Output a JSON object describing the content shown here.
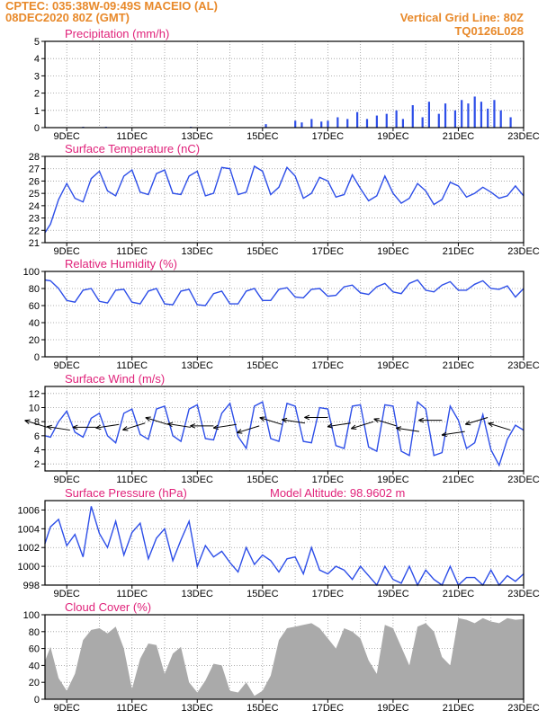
{
  "header": {
    "line1": "CPTEC:   035:38W-09:49S   MACEIO (AL)",
    "line2": "08DEC2020 80Z (GMT)",
    "right1": "Vertical Grid Line: 80Z",
    "right2": "TQ0126L028"
  },
  "x_ticks": [
    "9DEC",
    "11DEC",
    "13DEC",
    "15DEC",
    "17DEC",
    "19DEC",
    "21DEC",
    "23DEC"
  ],
  "colors": {
    "line": "#2d4ee8",
    "cloud": "#aaaaaa",
    "title": "#e0227a",
    "header": "#e8892a"
  },
  "chart_data": [
    {
      "type": "bar",
      "title": "Precipitation (mm/h)",
      "ylim": [
        0,
        5
      ],
      "yticks": [
        0,
        1,
        2,
        3,
        4,
        5
      ],
      "xlim": [
        8.333,
        23.0
      ],
      "x": [
        9.5,
        10.2,
        12.8,
        15.1,
        16.0,
        16.2,
        16.5,
        16.8,
        17.0,
        17.3,
        17.6,
        17.9,
        18.2,
        18.5,
        18.8,
        19.1,
        19.3,
        19.6,
        19.9,
        20.1,
        20.4,
        20.6,
        20.9,
        21.1,
        21.3,
        21.5,
        21.7,
        21.9,
        22.1,
        22.3,
        22.6
      ],
      "values": [
        0.05,
        0.05,
        0.05,
        0.2,
        0.4,
        0.3,
        0.5,
        0.35,
        0.4,
        0.6,
        0.5,
        0.9,
        0.5,
        0.7,
        0.8,
        1.0,
        0.5,
        1.3,
        0.6,
        1.5,
        0.8,
        1.4,
        1.0,
        1.6,
        1.4,
        1.8,
        1.5,
        1.1,
        1.6,
        1.0,
        0.6
      ]
    },
    {
      "type": "line",
      "title": "Surface Temperature (nC)",
      "ylim": [
        21,
        28
      ],
      "yticks": [
        21,
        22,
        23,
        24,
        25,
        26,
        27,
        28
      ],
      "xlim": [
        8.333,
        23.0
      ],
      "x": [
        8.33,
        8.5,
        8.75,
        9.0,
        9.25,
        9.5,
        9.75,
        10.0,
        10.25,
        10.5,
        10.75,
        11.0,
        11.25,
        11.5,
        11.75,
        12.0,
        12.25,
        12.5,
        12.75,
        13.0,
        13.25,
        13.5,
        13.75,
        14.0,
        14.25,
        14.5,
        14.75,
        15.0,
        15.25,
        15.5,
        15.75,
        16.0,
        16.25,
        16.5,
        16.75,
        17.0,
        17.25,
        17.5,
        17.75,
        18.0,
        18.25,
        18.5,
        18.75,
        19.0,
        19.25,
        19.5,
        19.75,
        20.0,
        20.25,
        20.5,
        20.75,
        21.0,
        21.25,
        21.5,
        21.75,
        22.0,
        22.25,
        22.5,
        22.75,
        23.0
      ],
      "values": [
        21.8,
        22.5,
        24.5,
        25.8,
        24.6,
        24.3,
        26.2,
        26.8,
        25.2,
        24.8,
        26.4,
        26.9,
        25.1,
        24.9,
        26.6,
        26.9,
        25.0,
        24.9,
        26.4,
        26.8,
        24.8,
        25.0,
        27.1,
        27.0,
        24.9,
        25.1,
        27.2,
        26.8,
        24.9,
        25.5,
        27.1,
        26.4,
        24.6,
        25.0,
        26.3,
        26.0,
        24.7,
        24.9,
        26.5,
        25.4,
        24.4,
        24.8,
        26.4,
        25.0,
        24.2,
        24.6,
        25.8,
        25.2,
        24.1,
        24.5,
        25.9,
        25.6,
        24.7,
        25.0,
        25.5,
        25.1,
        24.6,
        24.8,
        25.6,
        24.8
      ]
    },
    {
      "type": "line",
      "title": "Relative Humidity (%)",
      "ylim": [
        0,
        100
      ],
      "yticks": [
        0,
        20,
        40,
        60,
        80,
        100
      ],
      "xlim": [
        8.333,
        23.0
      ],
      "x": [
        8.33,
        8.5,
        8.75,
        9.0,
        9.25,
        9.5,
        9.75,
        10.0,
        10.25,
        10.5,
        10.75,
        11.0,
        11.25,
        11.5,
        11.75,
        12.0,
        12.25,
        12.5,
        12.75,
        13.0,
        13.25,
        13.5,
        13.75,
        14.0,
        14.25,
        14.5,
        14.75,
        15.0,
        15.25,
        15.5,
        15.75,
        16.0,
        16.25,
        16.5,
        16.75,
        17.0,
        17.25,
        17.5,
        17.75,
        18.0,
        18.25,
        18.5,
        18.75,
        19.0,
        19.25,
        19.5,
        19.75,
        20.0,
        20.25,
        20.5,
        20.75,
        21.0,
        21.25,
        21.5,
        21.75,
        22.0,
        22.25,
        22.5,
        22.75,
        23.0
      ],
      "values": [
        90,
        89,
        80,
        66,
        64,
        78,
        80,
        65,
        63,
        78,
        79,
        64,
        62,
        77,
        80,
        62,
        61,
        77,
        79,
        61,
        60,
        74,
        77,
        62,
        62,
        77,
        80,
        66,
        66,
        79,
        81,
        70,
        69,
        79,
        80,
        71,
        72,
        82,
        84,
        75,
        73,
        82,
        86,
        76,
        74,
        86,
        90,
        78,
        76,
        84,
        88,
        78,
        78,
        85,
        89,
        80,
        79,
        83,
        70,
        80
      ]
    },
    {
      "type": "line",
      "title": "Surface Wind (m/s)",
      "ylim": [
        1,
        13
      ],
      "yticks": [
        2,
        4,
        6,
        8,
        10,
        12
      ],
      "xlim": [
        8.333,
        23.0
      ],
      "x": [
        8.33,
        8.5,
        8.75,
        9.0,
        9.25,
        9.5,
        9.75,
        10.0,
        10.25,
        10.5,
        10.75,
        11.0,
        11.25,
        11.5,
        11.75,
        12.0,
        12.25,
        12.5,
        12.75,
        13.0,
        13.25,
        13.5,
        13.75,
        14.0,
        14.25,
        14.5,
        14.75,
        15.0,
        15.25,
        15.5,
        15.75,
        16.0,
        16.25,
        16.5,
        16.75,
        17.0,
        17.25,
        17.5,
        17.75,
        18.0,
        18.25,
        18.5,
        18.75,
        19.0,
        19.25,
        19.5,
        19.75,
        20.0,
        20.25,
        20.5,
        20.75,
        21.0,
        21.25,
        21.5,
        21.75,
        22.0,
        22.25,
        22.5,
        22.75,
        23.0
      ],
      "values": [
        6,
        5.8,
        8,
        9.5,
        6.5,
        5.8,
        8.5,
        9.2,
        6,
        5,
        9.2,
        9.8,
        6.2,
        5.5,
        9.8,
        10.2,
        6,
        5.2,
        9.8,
        10.4,
        5.6,
        5.4,
        9.2,
        10.6,
        5.9,
        4.2,
        10.2,
        10.8,
        5.6,
        5.2,
        10.6,
        10.2,
        5.2,
        5.0,
        10.0,
        9.8,
        4.6,
        4.2,
        10.2,
        10.4,
        4.4,
        3.8,
        10.4,
        10.2,
        3.8,
        3.2,
        10.8,
        9.8,
        3.2,
        3.6,
        10.2,
        8.2,
        4.2,
        5.0,
        9.0,
        4.0,
        1.8,
        5.5,
        7.5,
        6.8
      ],
      "vectors": {
        "x": [
          8.4,
          9.1,
          9.9,
          10.6,
          11.4,
          12.1,
          12.8,
          13.5,
          14.2,
          14.9,
          15.6,
          16.3,
          17.0,
          17.7,
          18.4,
          19.1,
          19.8,
          20.5,
          21.2,
          21.9,
          22.6
        ],
        "y": [
          7.2,
          6.8,
          7.2,
          7.6,
          7.8,
          7.6,
          7.2,
          7.4,
          7.6,
          7.4,
          7.6,
          7.8,
          8.6,
          7.8,
          8.0,
          7.4,
          6.6,
          8.2,
          6.6,
          8.6,
          6.8
        ]
      }
    },
    {
      "type": "line",
      "title": "Surface Pressure (hPa)",
      "annotation": "Model Altitude: 98.9602 m",
      "ylim": [
        998,
        1007
      ],
      "yticks": [
        998,
        1000,
        1002,
        1004,
        1006
      ],
      "xlim": [
        8.333,
        23.0
      ],
      "x": [
        8.33,
        8.5,
        8.75,
        9.0,
        9.25,
        9.5,
        9.75,
        10.0,
        10.25,
        10.5,
        10.75,
        11.0,
        11.25,
        11.5,
        11.75,
        12.0,
        12.25,
        12.5,
        12.75,
        13.0,
        13.25,
        13.5,
        13.75,
        14.0,
        14.25,
        14.5,
        14.75,
        15.0,
        15.25,
        15.5,
        15.75,
        16.0,
        16.25,
        16.5,
        16.75,
        17.0,
        17.25,
        17.5,
        17.75,
        18.0,
        18.25,
        18.5,
        18.75,
        19.0,
        19.25,
        19.5,
        19.75,
        20.0,
        20.25,
        20.5,
        20.75,
        21.0,
        21.25,
        21.5,
        21.75,
        22.0,
        22.25,
        22.5,
        22.75,
        23.0
      ],
      "values": [
        1002.4,
        1004.2,
        1005.0,
        1002.2,
        1003.4,
        1001.0,
        1006.4,
        1003.5,
        1002.0,
        1004.8,
        1001.2,
        1003.6,
        1004.6,
        1000.8,
        1003.0,
        1004.0,
        1000.6,
        1002.8,
        1004.8,
        1000.0,
        1002.2,
        1001.0,
        1001.6,
        1000.4,
        999.4,
        1002.0,
        1000.2,
        1001.2,
        1000.6,
        999.4,
        1000.8,
        1001.0,
        999.2,
        1002.0,
        999.6,
        999.2,
        1000.0,
        999.6,
        998.6,
        1000.0,
        999.0,
        997.8,
        1000.0,
        998.6,
        998.2,
        1000.0,
        997.6,
        999.6,
        998.6,
        997.8,
        1000.0,
        997.8,
        998.8,
        998.8,
        998.0,
        999.6,
        997.6,
        999.0,
        998.4,
        999.2
      ]
    },
    {
      "type": "area",
      "title": "Cloud Cover (%)",
      "ylim": [
        0,
        100
      ],
      "yticks": [
        0,
        20,
        40,
        60,
        80,
        100
      ],
      "xlim": [
        8.333,
        23.0
      ],
      "x": [
        8.33,
        8.5,
        8.75,
        9.0,
        9.25,
        9.5,
        9.75,
        10.0,
        10.25,
        10.5,
        10.75,
        11.0,
        11.25,
        11.5,
        11.75,
        12.0,
        12.25,
        12.5,
        12.75,
        13.0,
        13.25,
        13.5,
        13.75,
        14.0,
        14.25,
        14.5,
        14.75,
        15.0,
        15.25,
        15.5,
        15.75,
        16.0,
        16.25,
        16.5,
        16.75,
        17.0,
        17.25,
        17.5,
        17.75,
        18.0,
        18.25,
        18.5,
        18.75,
        19.0,
        19.25,
        19.5,
        19.75,
        20.0,
        20.25,
        20.5,
        20.75,
        21.0,
        21.25,
        21.5,
        21.75,
        22.0,
        22.25,
        22.5,
        22.75,
        23.0
      ],
      "values": [
        45,
        62,
        25,
        10,
        30,
        70,
        82,
        84,
        78,
        86,
        60,
        12,
        48,
        66,
        64,
        30,
        54,
        62,
        20,
        8,
        22,
        42,
        40,
        10,
        8,
        20,
        4,
        10,
        28,
        70,
        84,
        86,
        88,
        90,
        84,
        72,
        60,
        84,
        80,
        72,
        46,
        30,
        88,
        84,
        62,
        40,
        86,
        90,
        80,
        50,
        40,
        96,
        94,
        90,
        96,
        92,
        90,
        96,
        94,
        95
      ]
    }
  ]
}
